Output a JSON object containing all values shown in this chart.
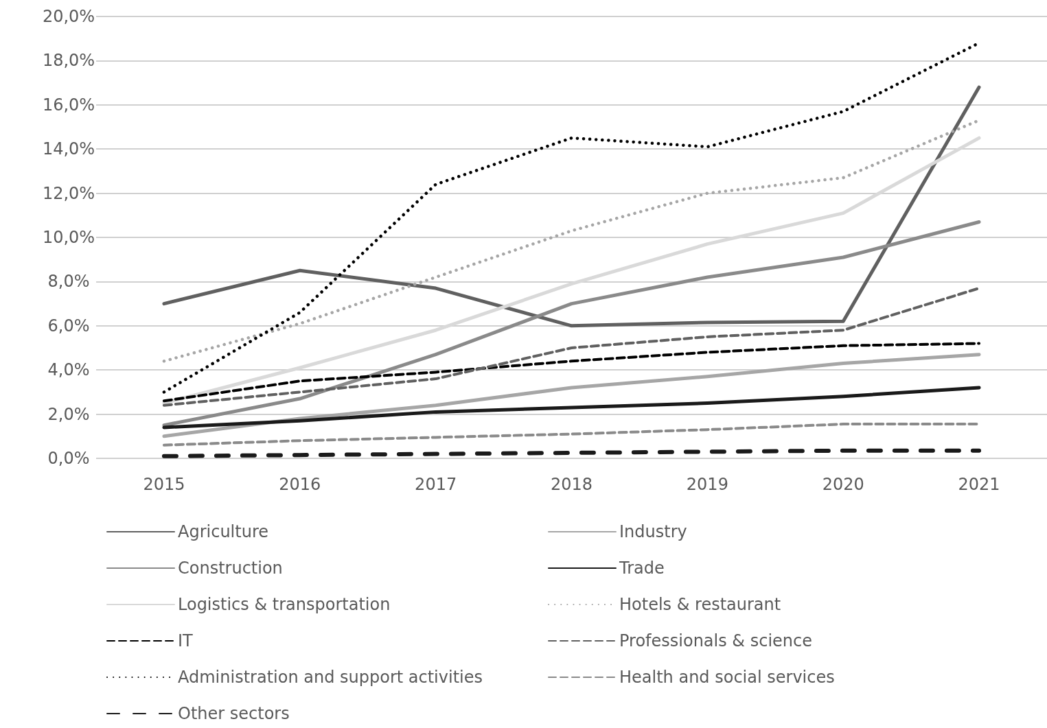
{
  "chart_data": {
    "type": "line",
    "categories": [
      "2015",
      "2016",
      "2017",
      "2018",
      "2019",
      "2020",
      "2021"
    ],
    "ylim": [
      0,
      20
    ],
    "yticks": [
      {
        "value": 0,
        "label": "0,0%"
      },
      {
        "value": 2,
        "label": "2,0%"
      },
      {
        "value": 4,
        "label": "4,0%"
      },
      {
        "value": 6,
        "label": "6,0%"
      },
      {
        "value": 8,
        "label": "8,0%"
      },
      {
        "value": 10,
        "label": "10,0%"
      },
      {
        "value": 12,
        "label": "12,0%"
      },
      {
        "value": 14,
        "label": "14,0%"
      },
      {
        "value": 16,
        "label": "16,0%"
      },
      {
        "value": 18,
        "label": "18,0%"
      },
      {
        "value": 20,
        "label": "20,0%"
      }
    ],
    "grid": "y",
    "legend": "bottom",
    "marker": "none",
    "series": [
      {
        "name": "Agriculture",
        "color": "#606060",
        "line_style": "solid",
        "values": [
          7.0,
          8.5,
          7.7,
          6.0,
          6.15,
          6.2,
          16.8
        ]
      },
      {
        "name": "Industry",
        "color": "#a6a6a6",
        "line_style": "solid",
        "values": [
          1.0,
          1.8,
          2.4,
          3.2,
          3.7,
          4.3,
          4.7
        ]
      },
      {
        "name": "Construction",
        "color": "#8a8a8a",
        "line_style": "solid",
        "values": [
          1.5,
          2.7,
          4.7,
          7.0,
          8.2,
          9.1,
          10.7
        ]
      },
      {
        "name": "Trade",
        "color": "#1a1a1a",
        "line_style": "solid",
        "values": [
          1.4,
          1.7,
          2.1,
          2.3,
          2.5,
          2.8,
          3.2
        ]
      },
      {
        "name": "Logistics & transportation",
        "color": "#d9d9d9",
        "line_style": "solid",
        "values": [
          2.5,
          4.1,
          5.8,
          7.9,
          9.7,
          11.1,
          14.5
        ]
      },
      {
        "name": "Hotels & restaurant",
        "color": "#a6a6a6",
        "line_style": "dotted",
        "values": [
          4.4,
          6.1,
          8.2,
          10.3,
          12.0,
          12.7,
          15.3
        ]
      },
      {
        "name": "IT",
        "color": "#000000",
        "line_style": "dashed",
        "values": [
          2.6,
          3.5,
          3.9,
          4.4,
          4.8,
          5.1,
          5.2
        ]
      },
      {
        "name": "Professionals & science",
        "color": "#606060",
        "line_style": "dashed",
        "values": [
          2.4,
          3.0,
          3.6,
          5.0,
          5.5,
          5.8,
          7.7
        ]
      },
      {
        "name": "Administration and support activities",
        "color": "#000000",
        "line_style": "dotted",
        "values": [
          3.0,
          6.6,
          12.4,
          14.5,
          14.1,
          15.7,
          18.8
        ]
      },
      {
        "name": "Health and social services",
        "color": "#8a8a8a",
        "line_style": "dashed",
        "values": [
          0.6,
          0.8,
          0.95,
          1.1,
          1.3,
          1.55,
          1.55
        ]
      },
      {
        "name": "Other sectors",
        "color": "#1a1a1a",
        "line_style": "dashed",
        "values": [
          0.1,
          0.15,
          0.2,
          0.25,
          0.3,
          0.35,
          0.35
        ]
      }
    ]
  }
}
